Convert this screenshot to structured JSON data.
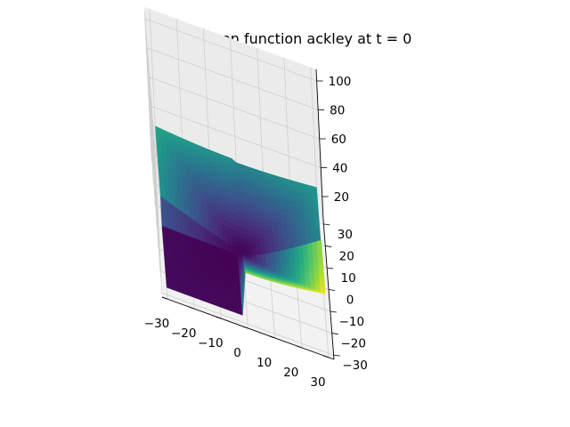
{
  "chart_data": {
    "type": "surface3d",
    "title": "ICNNs on function ackley at t = 0",
    "colormap": "viridis",
    "xlim": [
      -32,
      32
    ],
    "ylim": [
      -32,
      32
    ],
    "zlim": [
      4,
      108
    ],
    "x_ticks": [
      -30,
      -20,
      -10,
      0,
      10,
      20,
      30
    ],
    "y_ticks": [
      -30,
      -20,
      -10,
      0,
      10,
      20,
      30
    ],
    "z_ticks": [
      20,
      40,
      60,
      80,
      100
    ],
    "x_tick_labels": [
      "−30",
      "−20",
      "−10",
      "0",
      "10",
      "20",
      "30"
    ],
    "y_tick_labels": [
      "−30",
      "−20",
      "−10",
      "0",
      "10",
      "20",
      "30"
    ],
    "z_tick_labels": [
      "20",
      "40",
      "60",
      "80",
      "100"
    ],
    "grid": true,
    "surface": {
      "description": "Convex surface with minimum near (0,0)",
      "corner_values": [
        {
          "x": -30,
          "y": -30,
          "z": 9
        },
        {
          "x": 30,
          "y": -30,
          "z": 45
        },
        {
          "x": -30,
          "y": 30,
          "z": 30
        },
        {
          "x": 30,
          "y": 30,
          "z": 28
        }
      ],
      "center_value": {
        "x": 0,
        "y": 0,
        "z": 8
      }
    }
  }
}
